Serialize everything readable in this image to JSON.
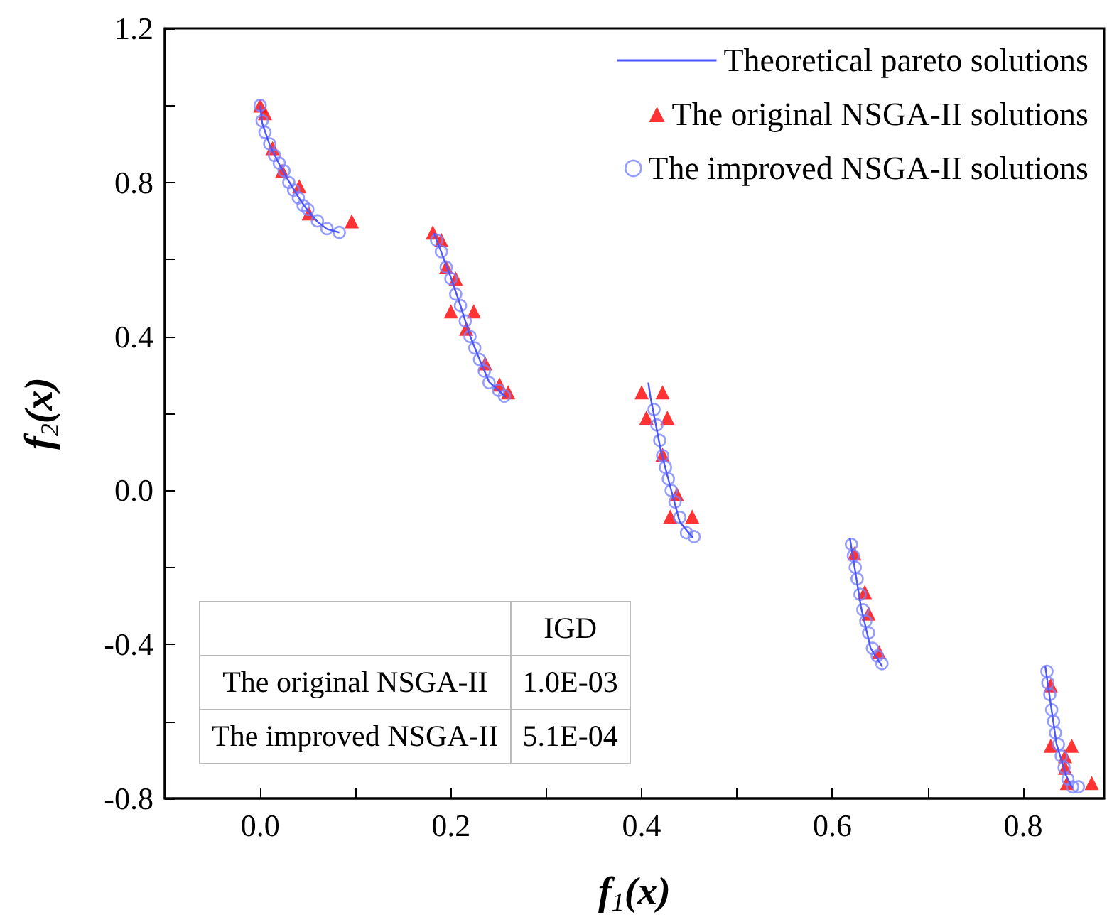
{
  "chart_data": {
    "type": "scatter",
    "xlabel": "f$_{1}$(x)",
    "ylabel": "f$_{2}$(x)",
    "xlim": [
      -0.1,
      0.885
    ],
    "xticks": [
      {
        "value": 0,
        "label": "0.0"
      },
      {
        "value": 0.1,
        "label": null
      },
      0.2,
      {
        "value": 0.3,
        "label": null
      },
      0.4,
      {
        "value": 0.5,
        "label": null
      },
      0.6,
      {
        "value": 0.7,
        "label": null
      },
      0.8
    ],
    "ylim": [
      -0.8,
      1.2
    ],
    "yticks": [
      -0.8,
      {
        "value": -0.6,
        "label": null
      },
      -0.4,
      {
        "value": -0.2,
        "label": null
      },
      {
        "value": 0,
        "label": "0.0"
      },
      {
        "value": 0.2,
        "label": null
      },
      0.4,
      {
        "value": 0.6,
        "label": null
      },
      0.8,
      {
        "value": 1.0,
        "label": null
      },
      1.2
    ],
    "legend": "top right",
    "annotations": [
      "IGD",
      "The original NSGA-II",
      "1.0E-03",
      "The improved NSGA-II",
      "5.1E-04"
    ],
    "series": [
      {
        "name": "Theoretical pareto solutions",
        "type": "line",
        "marker": "none",
        "line_style": "solid",
        "color": "#4a55ff",
        "x": [
          0,
          0.002,
          0.01,
          0.02,
          0.03,
          0.04,
          0.05,
          0.06,
          0.07,
          0.083,
          0.13,
          0.1822,
          0.2,
          0.21,
          0.22,
          0.23,
          0.24,
          0.2578,
          0.33,
          0.407,
          0.4093,
          0.42,
          0.43,
          0.44,
          0.4539,
          0.53,
          0.6184,
          0.63,
          0.64,
          0.6525,
          0.74,
          0.8233,
          0.835,
          0.845,
          0.8518
        ],
        "values": [
          1.0,
          0.955,
          0.897,
          0.847,
          0.803,
          0.762,
          0.726,
          0.698,
          0.679,
          0.67,
          null,
          0.669,
          0.553,
          0.48,
          0.402,
          0.34,
          0.282,
          0.242,
          null,
          0.28,
          0.242,
          0.105,
          0.01,
          -0.082,
          -0.124,
          null,
          -0.124,
          -0.303,
          -0.409,
          -0.458,
          null,
          -0.457,
          -0.658,
          -0.74,
          -0.773
        ]
      },
      {
        "name": "The original NSGA-II solutions",
        "marker": "triangle",
        "color": "#ff0000",
        "x": [
          0,
          0.005,
          0.013,
          0.023,
          0.041,
          0.051,
          0.096,
          0.181,
          0.19,
          0.195,
          0.205,
          0.2,
          0.224,
          0.216,
          0.236,
          0.251,
          0.26,
          0.4,
          0.422,
          0.405,
          0.427,
          0.422,
          0.437,
          0.43,
          0.453,
          0.623,
          0.634,
          0.638,
          0.649,
          0.829,
          0.829,
          0.851,
          0.844,
          0.844,
          0.846,
          0.872
        ],
        "values": [
          1.0,
          0.98,
          0.889,
          0.83,
          0.79,
          0.72,
          0.699,
          0.67,
          0.65,
          0.58,
          0.55,
          0.465,
          0.465,
          0.42,
          0.33,
          0.275,
          0.255,
          0.255,
          0.255,
          0.189,
          0.189,
          0.093,
          -0.01,
          -0.068,
          -0.068,
          -0.164,
          -0.264,
          -0.32,
          -0.42,
          -0.506,
          -0.663,
          -0.663,
          -0.69,
          -0.72,
          -0.76,
          -0.76
        ]
      },
      {
        "name": "The improved NSGA-II solutions",
        "marker": "circle",
        "color": "#7a84ff",
        "x": [
          0,
          0.002,
          0.005,
          0.01,
          0.015,
          0.02,
          0.025,
          0.03,
          0.035,
          0.04,
          0.045,
          0.05,
          0.06,
          0.07,
          0.083,
          0.185,
          0.19,
          0.195,
          0.2,
          0.205,
          0.21,
          0.215,
          0.22,
          0.225,
          0.23,
          0.235,
          0.24,
          0.25,
          0.256,
          0.413,
          0.416,
          0.419,
          0.422,
          0.425,
          0.428,
          0.431,
          0.435,
          0.44,
          0.447,
          0.455,
          0.62,
          0.622,
          0.624,
          0.626,
          0.629,
          0.632,
          0.635,
          0.638,
          0.642,
          0.647,
          0.652,
          0.825,
          0.826,
          0.828,
          0.83,
          0.832,
          0.834,
          0.837,
          0.84,
          0.843,
          0.847,
          0.852,
          0.858
        ],
        "values": [
          1.0,
          0.96,
          0.93,
          0.9,
          0.87,
          0.85,
          0.83,
          0.8,
          0.78,
          0.76,
          0.74,
          0.73,
          0.7,
          0.68,
          0.67,
          0.65,
          0.62,
          0.58,
          0.55,
          0.51,
          0.48,
          0.44,
          0.4,
          0.37,
          0.34,
          0.31,
          0.28,
          0.26,
          0.245,
          0.21,
          0.17,
          0.13,
          0.09,
          0.06,
          0.03,
          0.0,
          -0.03,
          -0.07,
          -0.11,
          -0.12,
          -0.14,
          -0.17,
          -0.2,
          -0.23,
          -0.27,
          -0.31,
          -0.34,
          -0.37,
          -0.41,
          -0.43,
          -0.45,
          -0.47,
          -0.5,
          -0.53,
          -0.57,
          -0.6,
          -0.63,
          -0.66,
          -0.69,
          -0.72,
          -0.75,
          -0.77,
          -0.77
        ]
      }
    ]
  }
}
